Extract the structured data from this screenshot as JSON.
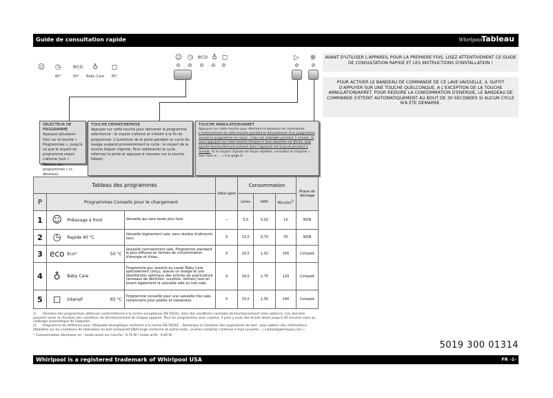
{
  "header": {
    "title": "Guide de consultation rapide",
    "brand": "Whirlpool",
    "section": "Tableau"
  },
  "panel_left": [
    {
      "icon": "prewash-icon",
      "glyph": "☺",
      "label": ""
    },
    {
      "icon": "rapid-icon",
      "glyph": "◷",
      "label": "40°"
    },
    {
      "icon": "eco-icon",
      "glyph": "eco",
      "label": "50°"
    },
    {
      "icon": "baby-care-icon",
      "glyph": "♁",
      "label": "Baby Care"
    },
    {
      "icon": "intensive-pot-icon",
      "glyph": "◻",
      "label": "65°"
    }
  ],
  "panel_center": [
    {
      "icon": "prewash-icon",
      "glyph": "☺"
    },
    {
      "icon": "rapid-icon",
      "glyph": "◷"
    },
    {
      "icon": "eco-icon",
      "glyph": "eco"
    },
    {
      "icon": "baby-care-icon",
      "glyph": "♁"
    },
    {
      "icon": "intensive-pot-icon",
      "glyph": "◻"
    }
  ],
  "start_glyph": "▷",
  "cancel_glyph": "⊗",
  "notice1": "AVANT D'UTILISER L'APPAREIL POUR LA PREMIERE FOIS, LISEZ ATTENTIVEMENT CE GUIDE DE CONSULTATION RAPIDE ET LES INSTRUCTIONS D'INSTALLATION !",
  "notice2": "POUR ACTIVER LE BANDEAU DE COMMANDE DE CE LAVE-VAISSELLE, IL SUFFIT D'APPUYER SUR UNE TOUCHE QUELCONQUE, A L'EXCEPTION DE LA TOUCHE ANNULATION/ARRET. POUR REDUIRE LA CONSOMMATION D'ENERGIE, LE BANDEAU DE COMMANDE S'ETEINT AUTOMATIQUEMENT AU BOUT DE 30 SECONDES SI AUCUN CYCLE N'A ETE DEMARRE.",
  "boxes": [
    {
      "title": "SELECTEUR DE PROGRAMME",
      "text": "Appuyez (plusieurs fois) sur la touche « Programmes », jusqu'à ce que le voyant du programme requis s'allume (voir « Tableau des programmes » ci-dessous)."
    },
    {
      "title": "TOUCHE DEPART/REPRISE",
      "text": "Appuyez sur cette touche pour démarrer le programme sélectionné : le voyant s'allume et s'éteint à la fin du programme. L'ouverture de la porte pendant un cycle de lavage suspend provisoirement le cycle : le voyant de la touche Départ clignote. Pour redémarrer le cycle, refermez la porte et appuyez à nouveau sur la touche Départ."
    },
    {
      "title": "TOUCHE ANNULATION/ARRET",
      "text": "Appuyez sur cette touche pour éteindre le bandeau de commande.",
      "underlined": "L'enfoncement de cette touche pendant le déroulement d'un programme annule le programme en cours : l'eau est vidangée pendant 1 minute. Si vous appuyez sur cette touche lorsque le lave-vaisselle est éteint, tout liquide éventuellement présent dans l'appareil est évacué pendant 1 minute.",
      "after": "Si le voyant clignote de façon répétée, consultez le chapitre « Que faire si ... » à la page 6."
    }
  ],
  "table": {
    "title": "Tableau des programmes",
    "col_p": "P",
    "col_prog": "Programmes Conseils pour le chargement",
    "col_det": "Déter-gent",
    "col_cons": "Consommation",
    "col_litres": "Litres",
    "col_kwh": "kWh",
    "col_min": "Minutes",
    "col_min_note": "1)",
    "col_phase": "Phase de Séchage",
    "rows": [
      {
        "p": "1",
        "glyph": "☺",
        "icon": "prewash-icon",
        "name": "Prélavage à froid",
        "temp": "",
        "desc": "Vaisselle qui sera lavée plus tard.",
        "det": "—",
        "litres": "5,0",
        "kwh": "0,02",
        "min": "10",
        "phase": "NON"
      },
      {
        "p": "2",
        "glyph": "◷",
        "icon": "rapid-icon",
        "name": "Rapide 40 °C",
        "temp": "",
        "desc": "Vaisselle légèrement sale, sans résidus d'aliments secs.",
        "det": "X",
        "litres": "13,0",
        "kwh": "0,70",
        "min": "30",
        "phase": "NON"
      },
      {
        "p": "3",
        "glyph": "eco",
        "icon": "eco-icon",
        "name": "Eco²⁾",
        "temp": "50 °C",
        "desc": "Vaisselle normalement sale. Programme standard le plus efficace en termes de consommation d'énergie et d'eau.",
        "det": "X",
        "litres": "15,0",
        "kwh": "1,02",
        "min": "165",
        "phase": "Complet"
      },
      {
        "p": "4",
        "glyph": "♁",
        "icon": "baby-care-icon",
        "name": "Baby Care",
        "temp": "",
        "desc": "Programme qui, associé au casier Baby Care spécialement conçu, assure un lavage et une désinfection optimaux des articles de puériculture (anneaux de dentition, sucettes, tétines) tout en lavant également la vaisselle sale ou très sale.",
        "det": "X",
        "litres": "16,0",
        "kwh": "1,75",
        "min": "120",
        "phase": "Complet"
      },
      {
        "p": "5",
        "glyph": "◻",
        "icon": "intensive-pot-icon",
        "name": "Intensif",
        "temp": "65 °C",
        "desc": "Programme conseillé pour une vaisselle très sale, notamment pour poêles et casseroles.",
        "det": "X",
        "litres": "15,0",
        "kwh": "1,50",
        "min": "140",
        "phase": "Complet"
      }
    ]
  },
  "footnotes": [
    {
      "n": "1)",
      "text": "Données des programmes obtenues conformément à la norme européenne EN 50242, dans des conditions normales de fonctionnement (sans options). Ces données peuvent varier en fonction des conditions de fonctionnement de chaque appareil. Pour les programmes avec capteur, il peut y avoir des écarts allant jusqu'à 30 minutes suite au calibrage automatique de l'appareil."
    },
    {
      "n": "2)",
      "text": "Programme de référence pour l'étiquette énergétique conforme à la norme EN 50242. - Remarque à l'intention des organismes de test : pour obtenir des informations détaillées sur les conditions de réalisation du test comparatif EN/Charge conforme et autres tests, veuillez contacter l'adresse e-mail suivante : « contact@whirlpool.com »."
    }
  ],
  "power_note": "* Consommation électrique en : mode laissé sur marche : 0,70 W / mode arrêt : 0,40 W.",
  "code": "5019 300 01314",
  "footer": {
    "trademark": "Whirlpool is a registered trademark of Whirlpool USA",
    "page": "FR -1-"
  }
}
